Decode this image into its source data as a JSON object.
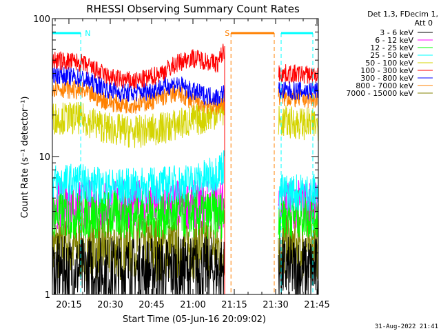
{
  "chart_data": {
    "type": "line",
    "title": "RHESSI Observing Summary Count Rates",
    "xlabel": "Start Time (05-Jun-16 20:09:02)",
    "ylabel": "Count Rate (s⁻¹ detector⁻¹)",
    "yscale": "log",
    "ylim": [
      1,
      100
    ],
    "y_ticks": [
      {
        "value": 1,
        "label": "1"
      },
      {
        "value": 10,
        "label": "10"
      },
      {
        "value": 100,
        "label": "100"
      }
    ],
    "xlim_min": [
      0,
      96.5
    ],
    "x_ticks": [
      {
        "value": 6,
        "label": "20:15"
      },
      {
        "value": 21,
        "label": "20:30"
      },
      {
        "value": 36,
        "label": "20:45"
      },
      {
        "value": 51,
        "label": "21:00"
      },
      {
        "value": 66,
        "label": "21:15"
      },
      {
        "value": 81,
        "label": "21:30"
      },
      {
        "value": 96,
        "label": "21:45"
      }
    ],
    "legend_header": [
      "Det 1,3, FDecim 1,",
      "Att 0"
    ],
    "legend_position": "right",
    "gaps": [
      [
        62.5,
        82.0
      ]
    ],
    "series": [
      {
        "name": "3 - 6 keV",
        "color": "#000000",
        "x": [
          0,
          10,
          20,
          30,
          40,
          50,
          62,
          82,
          96
        ],
        "y": [
          1.5,
          1.5,
          1.5,
          1.5,
          1.5,
          1.5,
          1.5,
          1.5,
          1.5
        ]
      },
      {
        "name": "6 - 12 keV",
        "color": "#ff00ff",
        "x": [
          0,
          10,
          20,
          30,
          40,
          50,
          62,
          82,
          96
        ],
        "y": [
          4.5,
          4.5,
          4.5,
          4.5,
          4.5,
          4.5,
          4.5,
          4.5,
          4.5
        ]
      },
      {
        "name": "12 - 25 keV",
        "color": "#00ff00",
        "x": [
          0,
          10,
          20,
          30,
          40,
          50,
          62,
          82,
          96
        ],
        "y": [
          3.8,
          3.8,
          3.8,
          3.8,
          3.8,
          3.8,
          3.8,
          3.8,
          3.8
        ]
      },
      {
        "name": "25 - 50 keV",
        "color": "#00ffff",
        "x": [
          0,
          10,
          20,
          30,
          40,
          50,
          58,
          62,
          82,
          96
        ],
        "y": [
          6.5,
          6.5,
          6.0,
          6.0,
          6.2,
          6.5,
          7.2,
          8.5,
          5.5,
          5.5
        ]
      },
      {
        "name": "50 - 100 keV",
        "color": "#d4d400",
        "x": [
          0,
          10,
          20,
          30,
          40,
          50,
          55,
          62,
          82,
          96
        ],
        "y": [
          19,
          19,
          16,
          15,
          16,
          18,
          19,
          22,
          18,
          17
        ]
      },
      {
        "name": "100 - 300 keV",
        "color": "#ff0000",
        "x": [
          0,
          10,
          20,
          25,
          30,
          35,
          40,
          45,
          50,
          55,
          60,
          62,
          82,
          96
        ],
        "y": [
          50,
          48,
          38,
          36,
          35,
          37,
          41,
          47,
          52,
          50,
          47,
          58,
          40,
          39
        ]
      },
      {
        "name": "300 - 800 keV",
        "color": "#0000ff",
        "x": [
          0,
          10,
          20,
          25,
          30,
          35,
          40,
          45,
          50,
          55,
          60,
          62,
          82,
          96
        ],
        "y": [
          40,
          37,
          31,
          29,
          29,
          30,
          32,
          34,
          30,
          28,
          27,
          29,
          30,
          30
        ]
      },
      {
        "name": "800 - 7000 keV",
        "color": "#ff8000",
        "x": [
          0,
          10,
          20,
          25,
          30,
          35,
          40,
          45,
          50,
          55,
          60,
          62,
          82,
          96
        ],
        "y": [
          32,
          30,
          25,
          24,
          24,
          25,
          27,
          29,
          26,
          24,
          23,
          25,
          27,
          26
        ]
      },
      {
        "name": "7000 - 15000 keV",
        "color": "#808000",
        "x": [
          0,
          10,
          20,
          30,
          40,
          50,
          62,
          82,
          96
        ],
        "y": [
          2.2,
          2.2,
          2.2,
          2.2,
          2.2,
          2.2,
          2.2,
          2.2,
          2.2
        ]
      }
    ],
    "annotations": [
      {
        "label": "N",
        "color": "#00ffff",
        "type": "night",
        "intervals": [
          [
            0,
            10.3
          ],
          [
            83.0,
            94.5
          ]
        ]
      },
      {
        "label": "S",
        "color": "#ff8000",
        "type": "saa",
        "intervals": [
          [
            64.8,
            80.5
          ]
        ]
      }
    ],
    "red_boundary": 62.5
  },
  "timestamp": "31-Aug-2022 21:41"
}
